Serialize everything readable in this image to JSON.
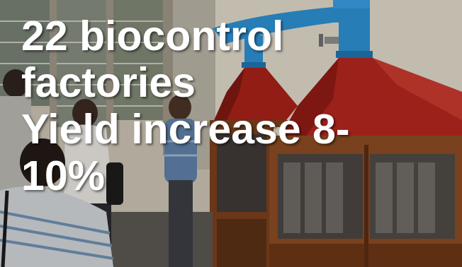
{
  "caption": {
    "line1": "22 biocontrol",
    "line2": "factories",
    "line3": "Yield increase 8-",
    "line4": "10%"
  },
  "colors": {
    "hood_red": "#b2261e",
    "cabinet_wood": "#8a4a22",
    "duct_blue": "#2d8fd0",
    "wall": "#d9d2c4",
    "caption_text": "#ffffff"
  },
  "scene": {
    "description_icons": [
      "person-figure",
      "fume-hood",
      "ventilation-duct",
      "window",
      "wooden-cabinet"
    ]
  }
}
